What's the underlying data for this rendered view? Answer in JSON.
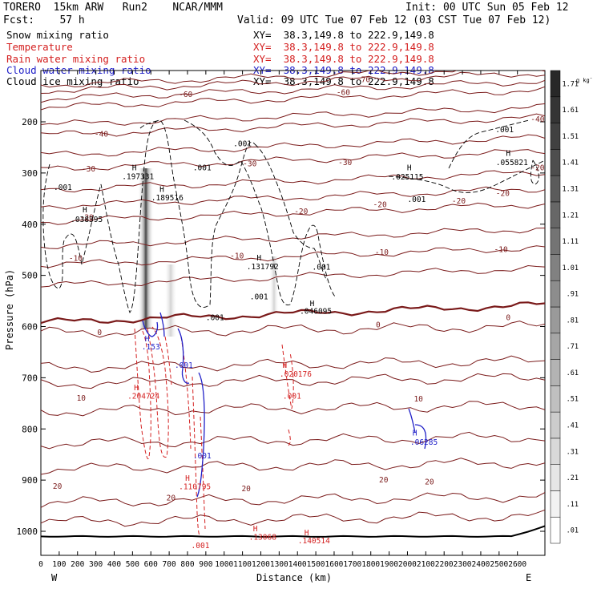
{
  "colors": {
    "black": "#000000",
    "brown": "#7a1a1a",
    "red": "#d42020",
    "blue": "#2020c8",
    "grey": "#555555"
  },
  "header": {
    "model": "TORERO  15km ARW   Run2    NCAR/MMM",
    "init": "Init: 00 UTC Sun 05 Feb 12",
    "fcst": "Fcst:    57 h",
    "valid": "Valid: 09 UTC Tue 07 Feb 12 (03 CST Tue 07 Feb 12)"
  },
  "legend": [
    {
      "name": "Snow mixing ratio",
      "xy": "XY=  38.3,149.8 to 222.9,149.8",
      "color": "#000000"
    },
    {
      "name": "Temperature",
      "xy": "XY=  38.3,149.8 to 222.9,149.8",
      "color": "#d42020"
    },
    {
      "name": "Rain water mixing ratio",
      "xy": "XY=  38.3,149.8 to 222.9,149.8",
      "color": "#d42020"
    },
    {
      "name": "Cloud water mixing ratio",
      "xy": "XY=  38.3,149.8 to 222.9,149.8",
      "color": "#2020c8"
    },
    {
      "name": "Cloud ice mixing ratio",
      "xy": "XY=  38.3,149.8 to 222.9,149.8",
      "color": "#000000"
    }
  ],
  "chart_data": {
    "type": "cross-section",
    "xlabel": "Distance (km)",
    "ylabel": "Pressure (hPa)",
    "xlim": [
      0,
      2750
    ],
    "ylim": [
      1050,
      100
    ],
    "x_ticks": [
      0,
      100,
      200,
      300,
      400,
      500,
      600,
      700,
      800,
      900,
      1000,
      1100,
      1200,
      1300,
      1400,
      1500,
      1600,
      1700,
      1800,
      1900,
      2000,
      2100,
      2200,
      2300,
      2400,
      2500,
      2600
    ],
    "y_ticks": [
      200,
      300,
      400,
      500,
      600,
      700,
      800,
      900,
      1000
    ],
    "west_label": "W",
    "east_label": "E",
    "temperature_contours": [
      {
        "value": -60,
        "p": 128
      },
      {
        "value": -60,
        "p": 139
      },
      {
        "value": -50,
        "p": 155
      },
      {
        "value": -50,
        "p": 172
      },
      {
        "value": -40,
        "p": 206
      },
      {
        "value": -40,
        "p": 226
      },
      {
        "value": -30,
        "p": 265
      },
      {
        "value": -30,
        "p": 292
      },
      {
        "value": -20,
        "p": 333
      },
      {
        "value": -20,
        "p": 365
      },
      {
        "value": -20,
        "p": 395
      },
      {
        "value": -10,
        "p": 443
      },
      {
        "value": -10,
        "p": 480
      },
      {
        "value": -10,
        "p": 520
      },
      {
        "value": 0,
        "p": 592
      },
      {
        "value": 0,
        "p": 612
      },
      {
        "value": 10,
        "p": 680
      },
      {
        "value": 10,
        "p": 712
      },
      {
        "value": 10,
        "p": 766
      },
      {
        "value": 20,
        "p": 828
      },
      {
        "value": 20,
        "p": 878
      },
      {
        "value": 20,
        "p": 944
      },
      {
        "value": 20,
        "p": 982
      }
    ],
    "contour_labels": [
      {
        "text": "-60",
        "x": 790,
        "p": 147,
        "color": "brown"
      },
      {
        "text": "-60",
        "x": 1650,
        "p": 143,
        "color": "brown"
      },
      {
        "text": "-70",
        "x": 1760,
        "p": 118,
        "color": "brown"
      },
      {
        "text": "-40",
        "x": 330,
        "p": 224,
        "color": "brown"
      },
      {
        "text": "-40",
        "x": 2710,
        "p": 195,
        "color": "brown"
      },
      {
        "text": "-30",
        "x": 260,
        "p": 292,
        "color": "brown"
      },
      {
        "text": "-30",
        "x": 1140,
        "p": 282,
        "color": "brown"
      },
      {
        "text": "-30",
        "x": 1660,
        "p": 280,
        "color": "brown"
      },
      {
        "text": "-20",
        "x": 250,
        "p": 387,
        "color": "brown"
      },
      {
        "text": "-20",
        "x": 1420,
        "p": 375,
        "color": "brown"
      },
      {
        "text": "-20",
        "x": 1850,
        "p": 362,
        "color": "brown"
      },
      {
        "text": "-20",
        "x": 2280,
        "p": 355,
        "color": "brown"
      },
      {
        "text": "-20",
        "x": 2520,
        "p": 340,
        "color": "brown"
      },
      {
        "text": "-20",
        "x": 2710,
        "p": 290,
        "color": "brown"
      },
      {
        "text": "-10",
        "x": 190,
        "p": 467,
        "color": "brown"
      },
      {
        "text": "-10",
        "x": 1070,
        "p": 462,
        "color": "brown"
      },
      {
        "text": "-10",
        "x": 1860,
        "p": 455,
        "color": "brown"
      },
      {
        "text": "-10",
        "x": 2510,
        "p": 450,
        "color": "brown"
      },
      {
        "text": "0",
        "x": 320,
        "p": 612,
        "color": "brown"
      },
      {
        "text": "0",
        "x": 1840,
        "p": 597,
        "color": "brown"
      },
      {
        "text": "0",
        "x": 2550,
        "p": 583,
        "color": "brown"
      },
      {
        "text": "10",
        "x": 220,
        "p": 740,
        "color": "brown"
      },
      {
        "text": "10",
        "x": 2060,
        "p": 742,
        "color": "brown"
      },
      {
        "text": "20",
        "x": 90,
        "p": 912,
        "color": "brown"
      },
      {
        "text": "20",
        "x": 710,
        "p": 935,
        "color": "brown"
      },
      {
        "text": "20",
        "x": 1120,
        "p": 917,
        "color": "brown"
      },
      {
        "text": "20",
        "x": 1870,
        "p": 900,
        "color": "brown"
      },
      {
        "text": "20",
        "x": 2120,
        "p": 904,
        "color": "brown"
      }
    ],
    "annotations": [
      {
        "text": "H",
        "x": 510,
        "p": 290,
        "color": "black"
      },
      {
        "text": ".197331",
        "x": 530,
        "p": 307,
        "color": "black"
      },
      {
        "text": "H",
        "x": 660,
        "p": 332,
        "color": "black"
      },
      {
        "text": ".189516",
        "x": 690,
        "p": 349,
        "color": "black"
      },
      {
        "text": "H",
        "x": 240,
        "p": 372,
        "color": "black"
      },
      {
        "text": ".038395",
        "x": 250,
        "p": 391,
        "color": "black"
      },
      {
        "text": ".001",
        "x": 120,
        "p": 328,
        "color": "black"
      },
      {
        "text": ".001",
        "x": 1100,
        "p": 243,
        "color": "black"
      },
      {
        "text": ".001",
        "x": 880,
        "p": 290,
        "color": "black"
      },
      {
        "text": "H",
        "x": 1190,
        "p": 466,
        "color": "black"
      },
      {
        "text": ".131792",
        "x": 1210,
        "p": 483,
        "color": "black"
      },
      {
        "text": ".001",
        "x": 1190,
        "p": 542,
        "color": "black"
      },
      {
        "text": ".001",
        "x": 1530,
        "p": 484,
        "color": "black"
      },
      {
        "text": "H",
        "x": 1480,
        "p": 555,
        "color": "black"
      },
      {
        "text": ".046095",
        "x": 1500,
        "p": 570,
        "color": "black"
      },
      {
        "text": ".001",
        "x": 950,
        "p": 583,
        "color": "black"
      },
      {
        "text": "H",
        "x": 2010,
        "p": 290,
        "color": "black"
      },
      {
        "text": ".025115",
        "x": 2000,
        "p": 308,
        "color": "black"
      },
      {
        "text": ".001",
        "x": 2050,
        "p": 352,
        "color": "black"
      },
      {
        "text": ".001",
        "x": 2530,
        "p": 216,
        "color": "black"
      },
      {
        "text": "H",
        "x": 2550,
        "p": 262,
        "color": "black"
      },
      {
        "text": ".055821",
        "x": 2570,
        "p": 280,
        "color": "black"
      },
      {
        "text": "H",
        "x": 580,
        "p": 624,
        "color": "blue"
      },
      {
        "text": ".153",
        "x": 600,
        "p": 640,
        "color": "blue"
      },
      {
        "text": ".001",
        "x": 780,
        "p": 676,
        "color": "blue"
      },
      {
        "text": ".001",
        "x": 880,
        "p": 853,
        "color": "blue"
      },
      {
        "text": "H",
        "x": 2040,
        "p": 808,
        "color": "blue"
      },
      {
        "text": ".06285",
        "x": 2090,
        "p": 826,
        "color": "blue"
      },
      {
        "text": "H",
        "x": 520,
        "p": 720,
        "color": "red"
      },
      {
        "text": ".204724",
        "x": 560,
        "p": 736,
        "color": "red"
      },
      {
        "text": "H",
        "x": 1330,
        "p": 676,
        "color": "red"
      },
      {
        "text": ".020176",
        "x": 1390,
        "p": 693,
        "color": "red"
      },
      {
        "text": ".001",
        "x": 1370,
        "p": 736,
        "color": "red"
      },
      {
        "text": "H",
        "x": 800,
        "p": 897,
        "color": "red"
      },
      {
        "text": ".110795",
        "x": 840,
        "p": 913,
        "color": "red"
      },
      {
        "text": ".001",
        "x": 870,
        "p": 1028,
        "color": "red"
      },
      {
        "text": "H",
        "x": 1170,
        "p": 995,
        "color": "red"
      },
      {
        "text": ".13068",
        "x": 1210,
        "p": 1012,
        "color": "red"
      },
      {
        "text": "H",
        "x": 1450,
        "p": 1003,
        "color": "red"
      },
      {
        "text": ".140514",
        "x": 1490,
        "p": 1019,
        "color": "red"
      }
    ],
    "colorbar": {
      "unit": "g kg",
      "unit_exp": "-1",
      "labels": [
        ".01",
        ".11",
        ".21",
        ".31",
        ".41",
        ".51",
        ".61",
        ".71",
        ".81",
        ".91",
        "1.01",
        "1.11",
        "1.21",
        "1.31",
        "1.41",
        "1.51",
        "1.61",
        "1.71"
      ]
    }
  }
}
